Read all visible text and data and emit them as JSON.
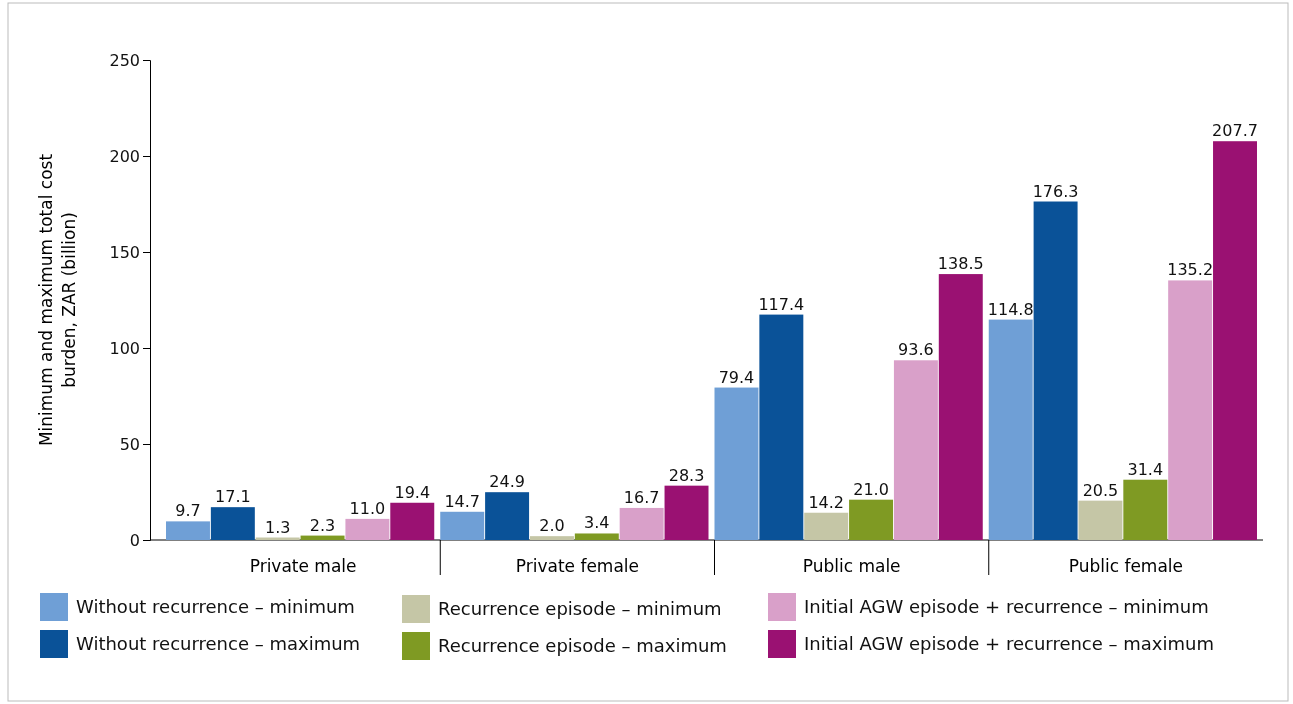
{
  "chart_data": {
    "type": "bar",
    "ylabel": "Minimum and maximum total cost burden, ZAR (billion)",
    "categories": [
      "Private male",
      "Private female",
      "Public male",
      "Public female"
    ],
    "series": [
      {
        "name": "Without recurrence – minimum",
        "color": "#6f9fd6",
        "values": [
          9.7,
          14.7,
          79.4,
          114.8
        ],
        "value_labels": [
          "9.7",
          "14.7",
          "79.4",
          "114.8"
        ]
      },
      {
        "name": "Without recurrence – maximum",
        "color": "#0a5298",
        "values": [
          17.1,
          24.9,
          117.4,
          176.3
        ],
        "value_labels": [
          "17.1",
          "24.9",
          "117.4",
          "176.3"
        ]
      },
      {
        "name": "Recurrence episode – minimum",
        "color": "#c5c6a6",
        "values": [
          1.3,
          2.0,
          14.2,
          20.5
        ],
        "value_labels": [
          "1.3",
          "2.0",
          "14.2",
          "20.5"
        ]
      },
      {
        "name": "Recurrence episode – maximum",
        "color": "#7f9a23",
        "values": [
          2.3,
          3.4,
          21.0,
          31.4
        ],
        "value_labels": [
          "2.3",
          "3.4",
          "21.0",
          "31.4"
        ]
      },
      {
        "name": "Initial AGW episode + recurrence – minimum",
        "color": "#d9a0c9",
        "values": [
          11.0,
          16.7,
          93.6,
          135.2
        ],
        "value_labels": [
          "11.0",
          "16.7",
          "93.6",
          "135.2"
        ]
      },
      {
        "name": "Initial AGW episode + recurrence – maximum",
        "color": "#9a1172",
        "values": [
          19.4,
          28.3,
          138.5,
          207.7
        ],
        "value_labels": [
          "19.4",
          "28.3",
          "138.5",
          "207.7"
        ]
      }
    ],
    "ylim": [
      0,
      250
    ],
    "yticks": [
      0,
      50,
      100,
      150,
      200,
      250
    ],
    "legend": "bottom",
    "grid": false
  }
}
